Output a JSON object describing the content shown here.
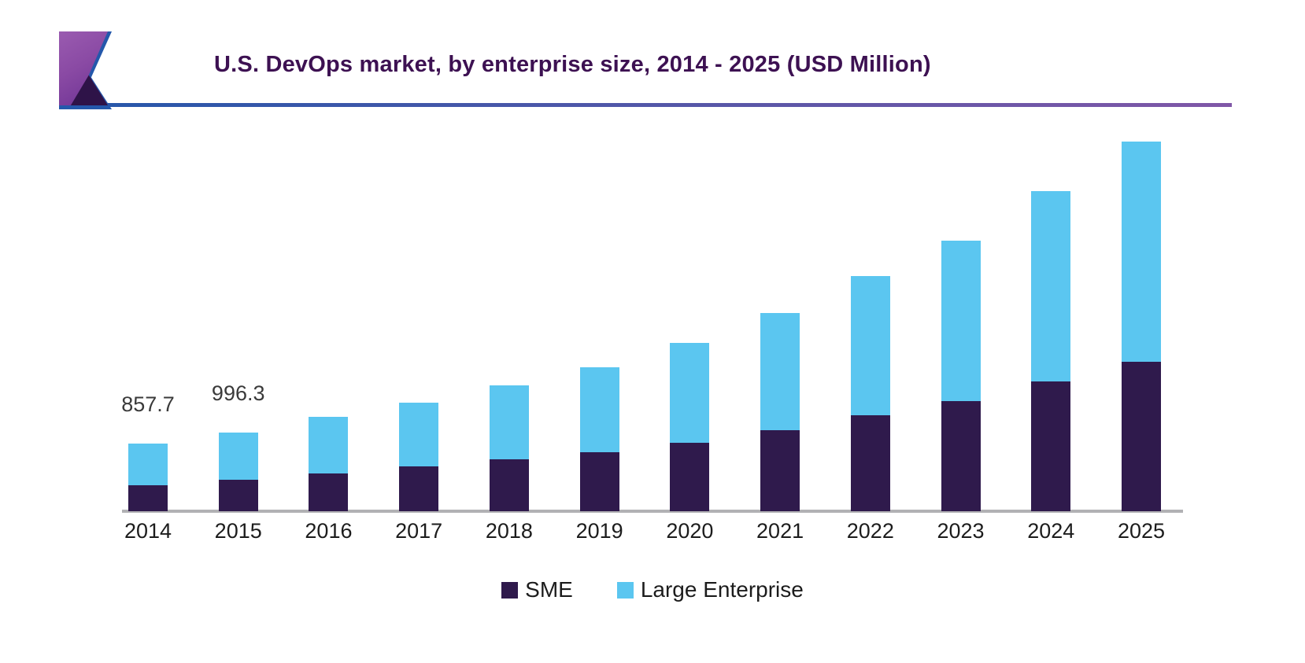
{
  "header": {
    "title": "U.S. DevOps market, by enterprise size, 2014 - 2025 (USD Million)"
  },
  "colors": {
    "title": "#3d1152",
    "axis_line": "#b1b1b4",
    "rule_gradient_left": "#2857aa",
    "rule_gradient_right": "#8057a7",
    "logo_purple": "#8a4aa4",
    "logo_dark_purple": "#2e1348",
    "logo_blue": "#2458ab"
  },
  "chart_data": {
    "type": "bar",
    "stacked": true,
    "title": "U.S. DevOps market, by enterprise size, 2014 - 2025 (USD Million)",
    "xlabel": "",
    "ylabel": "USD Million",
    "ylim": [
      0,
      4900
    ],
    "grid": false,
    "legend_position": "bottom",
    "categories": [
      "2014",
      "2015",
      "2016",
      "2017",
      "2018",
      "2019",
      "2020",
      "2021",
      "2022",
      "2023",
      "2024",
      "2025"
    ],
    "series": [
      {
        "name": "SME",
        "color": "#2f1a4c",
        "values": [
          330,
          400,
          480,
          570,
          660,
          750,
          870,
          1030,
          1220,
          1400,
          1650,
          1900
        ]
      },
      {
        "name": "Large Enterprise",
        "color": "#5bc6f0",
        "values": [
          527.7,
          596.3,
          720,
          810,
          940,
          1080,
          1270,
          1490,
          1770,
          2040,
          2420,
          2800
        ]
      }
    ],
    "totals": [
      857.7,
      996.3,
      1200,
      1380,
      1600,
      1830,
      2140,
      2520,
      2990,
      3440,
      4070,
      4700
    ],
    "data_labels": [
      "857.7",
      "996.3",
      null,
      null,
      null,
      null,
      null,
      null,
      null,
      null,
      null,
      null
    ]
  },
  "legend": {
    "items": [
      {
        "label": "SME",
        "color": "#2f1a4c"
      },
      {
        "label": "Large Enterprise",
        "color": "#5bc6f0"
      }
    ]
  }
}
